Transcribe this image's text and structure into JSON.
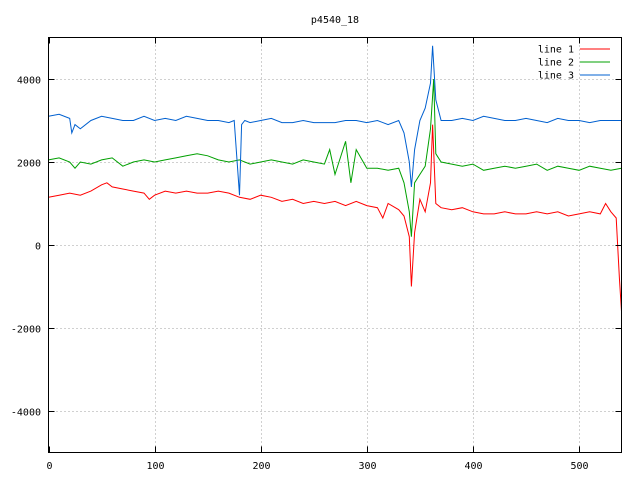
{
  "chart_data": {
    "type": "line",
    "title": "p4540_18",
    "xlabel": "",
    "ylabel": "",
    "xlim": [
      0,
      540
    ],
    "ylim": [
      -5000,
      5000
    ],
    "xticks": [
      0,
      100,
      200,
      300,
      400,
      500
    ],
    "yticks": [
      -4000,
      -2000,
      0,
      2000,
      4000
    ],
    "grid": true,
    "legend_position": "top-right",
    "series": [
      {
        "name": "line 1",
        "color": "#ff0000",
        "x": [
          0,
          10,
          20,
          30,
          40,
          50,
          55,
          60,
          70,
          80,
          90,
          95,
          100,
          110,
          120,
          130,
          140,
          150,
          160,
          170,
          180,
          190,
          200,
          210,
          220,
          230,
          240,
          250,
          260,
          270,
          280,
          290,
          300,
          310,
          315,
          320,
          330,
          335,
          340,
          342,
          345,
          350,
          355,
          360,
          362,
          365,
          370,
          380,
          390,
          400,
          410,
          420,
          430,
          440,
          450,
          460,
          470,
          480,
          490,
          500,
          510,
          520,
          525,
          530,
          535,
          538,
          540
        ],
        "y": [
          1150,
          1200,
          1250,
          1200,
          1300,
          1450,
          1500,
          1400,
          1350,
          1300,
          1250,
          1100,
          1200,
          1300,
          1250,
          1300,
          1250,
          1250,
          1300,
          1250,
          1150,
          1100,
          1200,
          1150,
          1050,
          1100,
          1000,
          1050,
          1000,
          1050,
          950,
          1050,
          950,
          900,
          650,
          1000,
          850,
          700,
          200,
          -1000,
          300,
          1100,
          800,
          1500,
          2900,
          1000,
          900,
          850,
          900,
          800,
          750,
          750,
          800,
          750,
          750,
          800,
          750,
          800,
          700,
          750,
          800,
          750,
          1000,
          800,
          650,
          -800,
          -1600
        ]
      },
      {
        "name": "line 2",
        "color": "#00a000",
        "x": [
          0,
          10,
          20,
          25,
          30,
          40,
          50,
          60,
          70,
          80,
          90,
          100,
          110,
          120,
          130,
          140,
          150,
          160,
          170,
          180,
          190,
          200,
          210,
          220,
          230,
          240,
          250,
          260,
          265,
          270,
          275,
          280,
          285,
          290,
          300,
          310,
          320,
          330,
          335,
          340,
          342,
          345,
          350,
          355,
          360,
          363,
          365,
          370,
          380,
          390,
          400,
          410,
          420,
          430,
          440,
          450,
          460,
          470,
          480,
          490,
          500,
          510,
          520,
          530,
          540
        ],
        "y": [
          2050,
          2100,
          2000,
          1850,
          2000,
          1950,
          2050,
          2100,
          1900,
          2000,
          2050,
          2000,
          2050,
          2100,
          2150,
          2200,
          2150,
          2050,
          2000,
          2050,
          1950,
          2000,
          2050,
          2000,
          1950,
          2050,
          2000,
          1950,
          2300,
          1700,
          2100,
          2500,
          1500,
          2300,
          1850,
          1850,
          1800,
          1850,
          1500,
          800,
          200,
          1500,
          1700,
          1900,
          2800,
          4000,
          2200,
          2000,
          1950,
          1900,
          1950,
          1800,
          1850,
          1900,
          1850,
          1900,
          1950,
          1800,
          1900,
          1850,
          1800,
          1900,
          1850,
          1800,
          1850
        ]
      },
      {
        "name": "line 3",
        "color": "#0060d0",
        "x": [
          0,
          10,
          20,
          22,
          25,
          30,
          40,
          50,
          60,
          70,
          80,
          90,
          100,
          110,
          120,
          130,
          140,
          150,
          160,
          170,
          175,
          180,
          182,
          185,
          190,
          200,
          210,
          220,
          230,
          240,
          250,
          260,
          270,
          280,
          290,
          300,
          310,
          320,
          330,
          335,
          340,
          342,
          345,
          350,
          355,
          360,
          362,
          365,
          370,
          380,
          390,
          400,
          410,
          420,
          430,
          440,
          450,
          460,
          470,
          480,
          490,
          500,
          510,
          520,
          530,
          540
        ],
        "y": [
          3100,
          3150,
          3050,
          2700,
          2900,
          2800,
          3000,
          3100,
          3050,
          3000,
          3000,
          3100,
          3000,
          3050,
          3000,
          3100,
          3050,
          3000,
          3000,
          2950,
          3000,
          1200,
          2900,
          3000,
          2950,
          3000,
          3050,
          2950,
          2950,
          3000,
          2950,
          2950,
          2950,
          3000,
          3000,
          2950,
          3000,
          2900,
          3000,
          2700,
          2000,
          1400,
          2300,
          3000,
          3300,
          3900,
          4800,
          3500,
          3000,
          3000,
          3050,
          3000,
          3100,
          3050,
          3000,
          3000,
          3050,
          3000,
          2950,
          3050,
          3000,
          3000,
          2950,
          3000,
          3000,
          3000
        ]
      }
    ]
  }
}
